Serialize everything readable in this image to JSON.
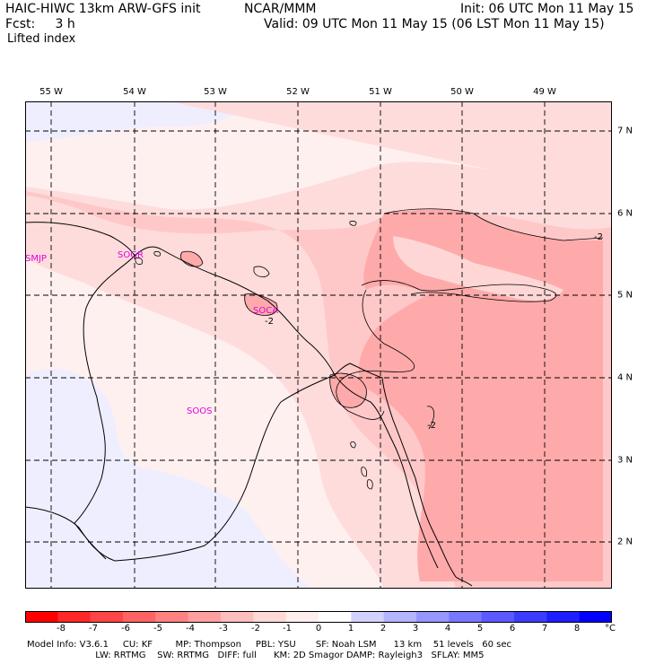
{
  "header": {
    "model": "HAIC-HIWC 13km ARW-GFS init",
    "org": "NCAR/MMM",
    "init": "Init: 06 UTC Mon 11 May 15",
    "fcst": "Fcst:     3 h",
    "valid": "Valid: 09 UTC Mon 11 May 15 (06 LST Mon 11 May 15)",
    "field": "Lifted index"
  },
  "map": {
    "lon_labels": [
      "55 W",
      "54 W",
      "53 W",
      "52 W",
      "51 W",
      "50 W",
      "49 W"
    ],
    "lat_labels": [
      "7 N",
      "6 N",
      "5 N",
      "4 N",
      "3 N",
      "2 N"
    ],
    "stations": [
      "SMJP",
      "SOGR",
      "SOCA",
      "SOOS"
    ],
    "contour_labels": [
      "-2",
      "-2",
      "-2"
    ]
  },
  "colorbar": {
    "ticks": [
      "-8",
      "-7",
      "-6",
      "-5",
      "-4",
      "-3",
      "-2",
      "-1",
      "0",
      "1",
      "2",
      "3",
      "4",
      "5",
      "6",
      "7",
      "8"
    ],
    "unit": "°C",
    "colors": [
      "#ff0000",
      "#ff2828",
      "#ff4646",
      "#ff6464",
      "#ff8282",
      "#ffa0a0",
      "#ffbebe",
      "#ffd8d8",
      "#ffeeee",
      "#ffffff",
      "#d2d2ff",
      "#b4b4ff",
      "#9696ff",
      "#7878ff",
      "#5a5aff",
      "#3c3cff",
      "#1e1eff",
      "#0000ff"
    ]
  },
  "footer": {
    "line1": "Model Info: V3.6.1     CU: KF        MP: Thompson     PBL: YSU       SF: Noah LSM      13 km    51 levels   60 sec",
    "line2": "                        LW: RRTMG    SW: RRTMG   DIFF: full      KM: 2D Smagor DAMP: Rayleigh3   SFLAY: MM5"
  }
}
